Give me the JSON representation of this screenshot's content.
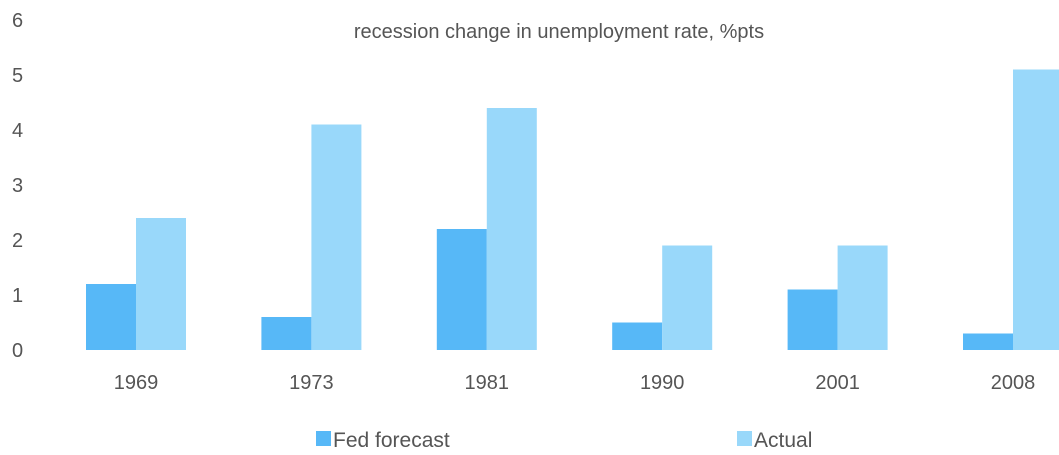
{
  "chart_data": {
    "type": "bar",
    "title": "recession change in unemployment rate, %pts",
    "xlabel": "",
    "ylabel": "",
    "categories": [
      "1969",
      "1973",
      "1981",
      "1990",
      "2001",
      "2008"
    ],
    "series": [
      {
        "name": "Fed forecast",
        "values": [
          1.2,
          0.6,
          2.2,
          0.5,
          1.1,
          0.3
        ],
        "color": "#57b8f7"
      },
      {
        "name": "Actual",
        "values": [
          2.4,
          4.1,
          4.4,
          1.9,
          1.9,
          5.1
        ],
        "color": "#99d8fa"
      }
    ],
    "ylim": [
      0,
      6
    ],
    "yticks": [
      "0",
      "1",
      "2",
      "3",
      "4",
      "5",
      "6"
    ],
    "grid": false,
    "legend": "bottom"
  }
}
